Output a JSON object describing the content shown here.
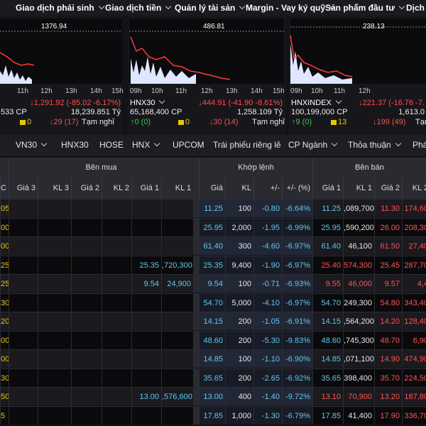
{
  "nav": [
    "Giao dịch phái sinh",
    "Giao dịch tiền",
    "Quản lý tài sản",
    "Margin - Vay ký quỹ",
    "Sản phẩm đầu tư",
    "Dịch v"
  ],
  "indices": [
    {
      "name": null,
      "ref": "1376.94",
      "hours": [
        "11h",
        "12h",
        "13h",
        "14h",
        "15h"
      ],
      "change": "↓1,291.92 (-85.02 -6.17%)",
      "volume": "533 CP",
      "value": "18,239.851 Tỷ",
      "up": null,
      "flat": "0",
      "down": "↓29 (17)",
      "status": "Tạm nghỉ"
    },
    {
      "name": "HNX30",
      "ref": "486.81",
      "hours": [
        "09h",
        "10h",
        "11h",
        "12h",
        "13h",
        "14h",
        "15h"
      ],
      "change": "↓444.91 (-41.90 -8.61%)",
      "volume": "65,168,400 CP",
      "value": "1,258.109 Tỷ",
      "up": "↑0 (0)",
      "flat": "0",
      "down": "↓30 (14)",
      "status": "Tạm nghỉ"
    },
    {
      "name": "HNXINDEX",
      "ref": "238.13",
      "hours": [
        "09h",
        "10h",
        "11h",
        "12h"
      ],
      "change": "↓221.37 (-16.76 -7.",
      "volume": "100,199,000 CP",
      "value": "1,613.0",
      "up": "↑9 (0)",
      "flat": "13",
      "down": "↓199 (49)",
      "status": "Tạm nghỉ"
    }
  ],
  "tabs": [
    "VN30",
    "HNX30",
    "HOSE",
    "HNX",
    "UPCOM",
    "Trái phiếu riêng lẻ",
    "CP Ngành",
    "Thỏa thuận",
    "Phái"
  ],
  "table": {
    "groups": [
      "Bên mua",
      "Khớp lệnh",
      "Bên bán"
    ],
    "columns": [
      "C",
      "Giá 3",
      "KL 3",
      "Giá 2",
      "KL 2",
      "Giá 1",
      "KL 1",
      "Giá",
      "KL",
      "+/-",
      "+/- (%)",
      "Giá 1",
      "KL 1",
      "Giá 2",
      "KL 2"
    ],
    "rows": [
      {
        "cells": [
          "05",
          null,
          null,
          null,
          null,
          null,
          null,
          "11.25",
          "100",
          "-0.80",
          "-6.64%",
          "11.25",
          ",089,700",
          "11.30",
          "174,60"
        ],
        "sell1_color": "#62c6ee"
      },
      {
        "cells": [
          "00",
          null,
          null,
          null,
          null,
          null,
          null,
          "25.95",
          "2,000",
          "-1.95",
          "-6.99%",
          "25.95",
          ",590,200",
          "26.00",
          "208,30"
        ],
        "sell1_color": "#62c6ee"
      },
      {
        "cells": [
          "00",
          null,
          null,
          null,
          null,
          null,
          null,
          "61.40",
          "300",
          "-4.60",
          "-6.97%",
          "61.40",
          "46,100",
          "61.50",
          "27,40"
        ],
        "sell1_color": "#62c6ee"
      },
      {
        "cells": [
          "25",
          null,
          null,
          null,
          null,
          "25.35",
          ",720,300",
          "25.35",
          "9,400",
          "-1.90",
          "-6.97%",
          "25.40",
          "574,300",
          "25.45",
          "287,70"
        ],
        "sell1_color": "#ff5252"
      },
      {
        "cells": [
          "25",
          null,
          null,
          null,
          null,
          "9.54",
          "24,900",
          "9.54",
          "100",
          "-0.71",
          "-6.93%",
          "9.55",
          "46,000",
          "9.57",
          "4,4"
        ],
        "sell1_color": "#ff5252"
      },
      {
        "cells": [
          "30",
          null,
          null,
          null,
          null,
          null,
          null,
          "54.70",
          "5,000",
          "-4.10",
          "-6.97%",
          "54.70",
          "249,300",
          "54.80",
          "343,40"
        ],
        "sell1_color": "#62c6ee"
      },
      {
        "cells": [
          "20",
          null,
          null,
          null,
          null,
          null,
          null,
          "14.15",
          "200",
          "-1.05",
          "-6.91%",
          "14.15",
          ",564,200",
          "14.20",
          "128,40"
        ],
        "sell1_color": "#62c6ee"
      },
      {
        "cells": [
          "00",
          null,
          null,
          null,
          null,
          null,
          null,
          "48.60",
          "200",
          "-5.30",
          "-9.83%",
          "48.60",
          ",745,300",
          "48.70",
          "6,90"
        ],
        "sell1_color": "#62c6ee"
      },
      {
        "cells": [
          "00",
          null,
          null,
          null,
          null,
          null,
          null,
          "14.85",
          "100",
          "-1.10",
          "-6.90%",
          "14.85",
          ",071,100",
          "14.90",
          "474,90"
        ],
        "sell1_color": "#62c6ee"
      },
      {
        "cells": [
          "30",
          null,
          null,
          null,
          null,
          null,
          null,
          "35.65",
          "200",
          "-2.65",
          "-6.92%",
          "35.65",
          "398,400",
          "35.70",
          "224,50"
        ],
        "sell1_color": "#62c6ee"
      },
      {
        "cells": [
          "50",
          null,
          null,
          null,
          null,
          "13.00",
          ",576,600",
          "13.00",
          "400",
          "-1.40",
          "-9.72%",
          "13.10",
          "70,900",
          "13.20",
          "187,80"
        ],
        "sell1_color": "#ff5252"
      },
      {
        "cells": [
          "5",
          null,
          null,
          null,
          null,
          null,
          null,
          "17.85",
          "1,000",
          "-1.30",
          "-6.79%",
          "17.85",
          "41,400",
          "17.90",
          "336,70"
        ],
        "sell1_color": "#62c6ee"
      }
    ]
  }
}
